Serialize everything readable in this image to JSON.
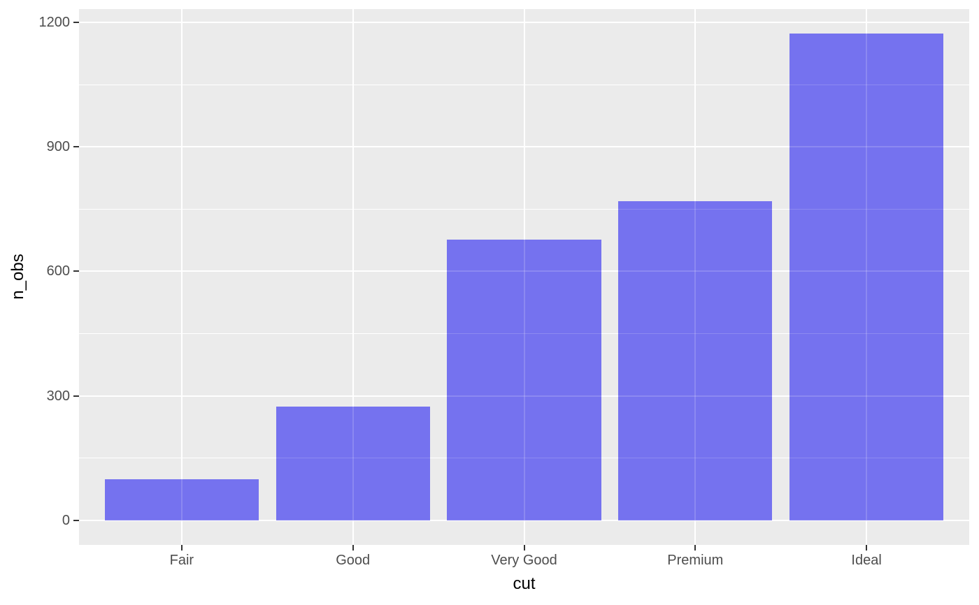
{
  "chart_data": {
    "type": "bar",
    "title": "",
    "xlabel": "cut",
    "ylabel": "n_obs",
    "categories": [
      "Fair",
      "Good",
      "Very Good",
      "Premium",
      "Ideal"
    ],
    "values": [
      100,
      275,
      676,
      769,
      1173
    ],
    "yticks": [
      0,
      300,
      600,
      900,
      1200
    ],
    "yminor": [
      150,
      450,
      750,
      1050
    ],
    "ylim": [
      -59,
      1232
    ],
    "x_expand": 0.6,
    "bar_rel_width": 0.9,
    "grid": "on",
    "legend_position": "none",
    "colors": {
      "bar_fill": "#7572EF",
      "panel_bg": "#EBEBEB",
      "grid": "#FFFFFF",
      "grid_overlay": "rgba(255,255,255,0.17)",
      "tick_text": "#4D4D4D",
      "axis_title": "#000000",
      "tick_mark": "#333333",
      "page_bg": "#FFFFFF"
    }
  }
}
